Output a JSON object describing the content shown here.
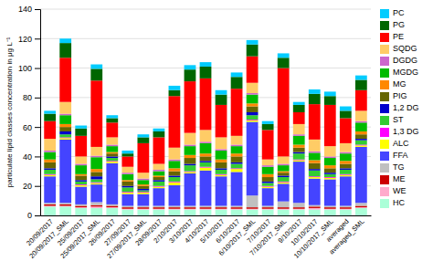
{
  "chart_data": {
    "type": "bar",
    "stacked": true,
    "grid": true,
    "legend": "right",
    "ylabel": "particulate lipid classes concentration in μg L⁻¹",
    "ylim": [
      0,
      140
    ],
    "yticks": [
      0,
      20,
      40,
      60,
      80,
      100,
      120,
      140
    ],
    "categories": [
      "20/09/2017",
      "20/09/2017_SML",
      "25/09/2017",
      "25/09/2017_SML",
      "26/09/2017",
      "27/09/2017",
      "27/09/2017_SML",
      "28/09/2017",
      "2/10/2017",
      "3/10/2017",
      "4/10/2017",
      "5/10/2017",
      "6/10/2017",
      "6/10/2017_SML",
      "7/10/2017",
      "7/10/2017_SML",
      "9/10/2017",
      "10/10/2017",
      "10/10/2017_SML",
      "averaged",
      "averaged_SML"
    ],
    "series": [
      {
        "name": "HC",
        "color": "#aaffd8",
        "values": [
          6,
          6,
          5,
          5,
          5,
          4,
          4,
          4,
          4,
          4,
          4,
          4,
          4,
          4,
          4,
          4,
          4,
          4,
          4,
          4,
          5
        ]
      },
      {
        "name": "WE",
        "color": "#ffaacc",
        "values": [
          0.5,
          0.5,
          0.5,
          1,
          0.5,
          0.5,
          0.5,
          0.5,
          0.5,
          0.5,
          0.5,
          0.5,
          0.5,
          0.5,
          0.5,
          0.5,
          0.5,
          1,
          0.5,
          0.5,
          0.5
        ]
      },
      {
        "name": "ME",
        "color": "#cc0000",
        "values": [
          1,
          1,
          1,
          1,
          1,
          1,
          1,
          1,
          1,
          1,
          1,
          1,
          1,
          1,
          1,
          1,
          1,
          1,
          1,
          1,
          1
        ]
      },
      {
        "name": "TG",
        "color": "#c0c0c0",
        "values": [
          1,
          1,
          1,
          2,
          1,
          1,
          1,
          1,
          1,
          1,
          1,
          1,
          1,
          8,
          1,
          4,
          3,
          1,
          1,
          1,
          2
        ]
      },
      {
        "name": "FFA",
        "color": "#4444ff",
        "values": [
          18,
          43,
          12,
          12,
          28,
          8,
          8,
          12,
          14,
          22,
          24,
          20,
          23,
          50,
          12,
          12,
          28,
          18,
          18,
          20,
          38
        ]
      },
      {
        "name": "ALC",
        "color": "#ffff00",
        "values": [
          1,
          1,
          1,
          1,
          1,
          1,
          1,
          1,
          2,
          1,
          2,
          1,
          2,
          1,
          1,
          1,
          1,
          1,
          1,
          1,
          1
        ]
      },
      {
        "name": "1,3 DG",
        "color": "#ff00ff",
        "values": [
          0.5,
          0.5,
          0.5,
          0.5,
          0.5,
          0.5,
          0.5,
          0.5,
          0.5,
          0.5,
          0.5,
          0.5,
          0.5,
          0.5,
          0.5,
          0.5,
          0.5,
          0.5,
          0.5,
          0.5,
          0.5
        ]
      },
      {
        "name": "ST",
        "color": "#33cc33",
        "values": [
          3,
          2,
          2,
          2,
          2,
          3,
          1,
          3,
          3,
          4,
          3,
          3,
          3,
          3,
          2,
          3,
          4,
          4,
          2,
          3,
          3
        ]
      },
      {
        "name": "1,2 DG",
        "color": "#0000cc",
        "values": [
          1,
          2,
          1,
          2,
          1,
          1,
          1,
          1,
          1,
          1,
          1,
          1,
          1,
          2,
          1,
          1,
          1,
          1,
          1,
          1,
          1
        ]
      },
      {
        "name": "PIG",
        "color": "#666600",
        "values": [
          4,
          3,
          3,
          3,
          2,
          3,
          2,
          2,
          3,
          4,
          3,
          4,
          4,
          4,
          3,
          2,
          3,
          4,
          3,
          3,
          3
        ]
      },
      {
        "name": "MG",
        "color": "#ff8800",
        "values": [
          2,
          2,
          1,
          2,
          1,
          1,
          1,
          1,
          2,
          2,
          2,
          2,
          2,
          2,
          2,
          1,
          2,
          2,
          2,
          2,
          2
        ]
      },
      {
        "name": "MGDG",
        "color": "#00bb00",
        "values": [
          5,
          6,
          6,
          8,
          4,
          4,
          3,
          3,
          5,
          6,
          7,
          6,
          5,
          6,
          5,
          4,
          6,
          5,
          5,
          5,
          6
        ]
      },
      {
        "name": "DGDG",
        "color": "#cc66cc",
        "values": [
          1,
          1,
          1,
          1,
          1,
          1,
          1,
          1,
          1,
          1,
          1,
          1,
          1,
          1,
          1,
          1,
          1,
          1,
          1,
          1,
          1
        ]
      },
      {
        "name": "SQDG",
        "color": "#ffcc66",
        "values": [
          8,
          8,
          5,
          6,
          5,
          4,
          4,
          4,
          8,
          8,
          8,
          8,
          6,
          7,
          4,
          5,
          7,
          8,
          7,
          6,
          7
        ]
      },
      {
        "name": "PE",
        "color": "#ff0000",
        "values": [
          12,
          30,
          14,
          45,
          10,
          7,
          20,
          18,
          35,
          35,
          35,
          22,
          32,
          18,
          20,
          60,
          8,
          24,
          28,
          17,
          14
        ]
      },
      {
        "name": "PG",
        "color": "#006600",
        "values": [
          5,
          10,
          5,
          8,
          3,
          2,
          4,
          4,
          4,
          8,
          8,
          7,
          8,
          8,
          4,
          7,
          5,
          7,
          6,
          5,
          7
        ]
      },
      {
        "name": "PC",
        "color": "#00ccff",
        "values": [
          2,
          3,
          2,
          3,
          2,
          2,
          2,
          2,
          3,
          3,
          3,
          3,
          3,
          3,
          2,
          3,
          2,
          3,
          3,
          3,
          3
        ]
      }
    ]
  }
}
